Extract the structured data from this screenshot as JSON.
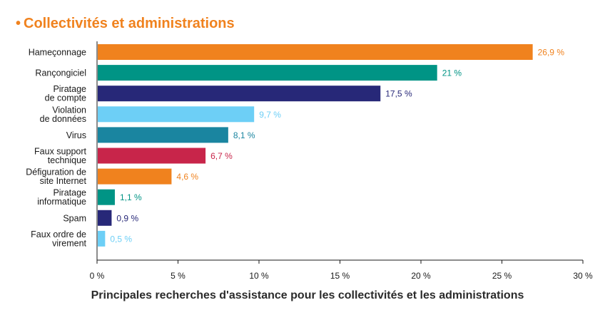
{
  "header": {
    "bullet": "•",
    "title": "Collectivités et administrations"
  },
  "chart_data": {
    "type": "bar",
    "orientation": "horizontal",
    "categories": [
      [
        "Hameçonnage"
      ],
      [
        "Rançongiciel"
      ],
      [
        "Piratage",
        "de compte"
      ],
      [
        "Violation",
        "de données"
      ],
      [
        "Virus"
      ],
      [
        "Faux support",
        "technique"
      ],
      [
        "Défiguration de",
        "site Internet"
      ],
      [
        "Piratage",
        "informatique"
      ],
      [
        "Spam"
      ],
      [
        "Faux ordre de",
        "virement"
      ]
    ],
    "values": [
      26.9,
      21,
      17.5,
      9.7,
      8.1,
      6.7,
      4.6,
      1.1,
      0.9,
      0.5
    ],
    "value_labels": [
      "26,9 %",
      "21 %",
      "17,5 %",
      "9,7 %",
      "8,1 %",
      "6,7 %",
      "4,6 %",
      "1,1 %",
      "0,9 %",
      "0,5 %"
    ],
    "colors": [
      "#f0821e",
      "#009485",
      "#272878",
      "#6dcff6",
      "#1a85a0",
      "#c8254a",
      "#f0821e",
      "#009485",
      "#272878",
      "#6dcff6"
    ],
    "xlim": [
      0,
      30
    ],
    "xticks": [
      0,
      5,
      10,
      15,
      20,
      25,
      30
    ],
    "xtick_labels": [
      "0 %",
      "5 %",
      "10 %",
      "15 %",
      "20 %",
      "25 %",
      "30 %"
    ],
    "title": "Collectivités et administrations",
    "caption": "Principales recherches d'assistance pour les collectivités et les administrations",
    "grid": false
  }
}
